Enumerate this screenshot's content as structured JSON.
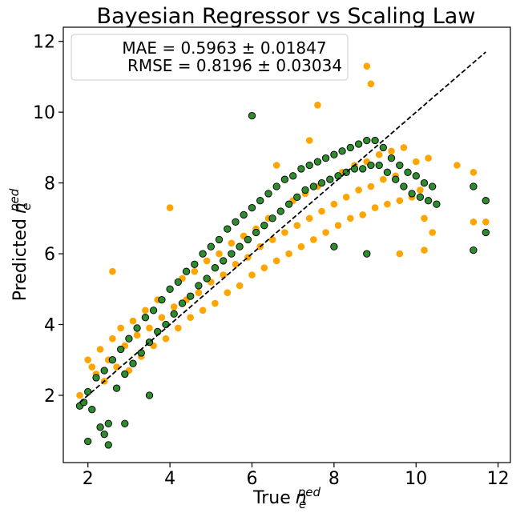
{
  "chart_data": {
    "type": "scatter",
    "title": "Bayesian Regressor vs Scaling Law",
    "xlabel_main": "True",
    "ylabel_main": "Predicted",
    "label_symbol": "n",
    "label_sub": "e",
    "label_sup": "ped",
    "xlim": [
      1.4,
      12.3
    ],
    "ylim": [
      0.1,
      12.4
    ],
    "xticks": [
      2,
      4,
      6,
      8,
      10,
      12
    ],
    "yticks": [
      2,
      4,
      6,
      8,
      10,
      12
    ],
    "grid": false,
    "annotation": {
      "line1": "MAE = 0.5963 ± 0.01847",
      "line2": "RMSE = 0.8196 ± 0.03034",
      "placement": "top-left"
    },
    "reference_line": {
      "style": "dashed",
      "color": "#000000",
      "x": [
        1.8,
        11.7
      ],
      "y": [
        1.8,
        11.7
      ]
    },
    "series": [
      {
        "color": "#ffa500",
        "edgecolor": "#ffa500",
        "points": [
          [
            1.8,
            2.0
          ],
          [
            2.0,
            3.0
          ],
          [
            2.1,
            2.8
          ],
          [
            2.2,
            2.6
          ],
          [
            2.3,
            3.3
          ],
          [
            2.4,
            2.4
          ],
          [
            2.5,
            3.0
          ],
          [
            2.6,
            3.6
          ],
          [
            2.7,
            2.8
          ],
          [
            2.8,
            3.9
          ],
          [
            2.9,
            3.4
          ],
          [
            3.0,
            2.7
          ],
          [
            3.1,
            4.1
          ],
          [
            3.2,
            3.7
          ],
          [
            3.3,
            3.1
          ],
          [
            3.4,
            4.4
          ],
          [
            3.5,
            3.9
          ],
          [
            3.6,
            3.4
          ],
          [
            3.7,
            4.7
          ],
          [
            3.8,
            4.2
          ],
          [
            3.9,
            3.6
          ],
          [
            4.0,
            5.0
          ],
          [
            4.1,
            4.5
          ],
          [
            4.2,
            3.9
          ],
          [
            4.3,
            5.3
          ],
          [
            4.4,
            4.7
          ],
          [
            4.5,
            4.2
          ],
          [
            4.6,
            5.5
          ],
          [
            4.7,
            4.9
          ],
          [
            4.8,
            4.4
          ],
          [
            4.9,
            5.8
          ],
          [
            5.0,
            5.2
          ],
          [
            5.1,
            4.6
          ],
          [
            5.2,
            6.0
          ],
          [
            5.3,
            5.4
          ],
          [
            5.4,
            4.9
          ],
          [
            5.5,
            6.3
          ],
          [
            5.6,
            5.7
          ],
          [
            5.7,
            5.1
          ],
          [
            5.8,
            6.5
          ],
          [
            5.9,
            5.9
          ],
          [
            6.0,
            5.4
          ],
          [
            6.1,
            6.7
          ],
          [
            6.2,
            6.2
          ],
          [
            6.3,
            5.6
          ],
          [
            6.4,
            7.0
          ],
          [
            6.5,
            6.4
          ],
          [
            6.6,
            5.8
          ],
          [
            6.7,
            7.2
          ],
          [
            6.8,
            6.6
          ],
          [
            6.9,
            6.0
          ],
          [
            7.0,
            7.5
          ],
          [
            7.1,
            6.8
          ],
          [
            7.2,
            6.2
          ],
          [
            7.3,
            7.7
          ],
          [
            7.4,
            7.0
          ],
          [
            7.5,
            6.4
          ],
          [
            7.6,
            7.9
          ],
          [
            7.7,
            7.2
          ],
          [
            7.8,
            6.6
          ],
          [
            7.9,
            8.1
          ],
          [
            8.0,
            7.4
          ],
          [
            8.1,
            6.8
          ],
          [
            8.2,
            8.3
          ],
          [
            8.3,
            7.6
          ],
          [
            8.4,
            7.0
          ],
          [
            8.5,
            8.5
          ],
          [
            8.6,
            7.8
          ],
          [
            8.7,
            7.1
          ],
          [
            8.8,
            8.6
          ],
          [
            8.9,
            7.9
          ],
          [
            9.0,
            7.3
          ],
          [
            9.1,
            8.8
          ],
          [
            9.2,
            8.1
          ],
          [
            9.3,
            7.4
          ],
          [
            9.4,
            8.9
          ],
          [
            9.5,
            8.2
          ],
          [
            9.6,
            7.5
          ],
          [
            9.7,
            9.0
          ],
          [
            9.8,
            8.3
          ],
          [
            9.9,
            7.6
          ],
          [
            10.0,
            8.6
          ],
          [
            10.1,
            7.8
          ],
          [
            10.2,
            7.0
          ],
          [
            10.3,
            8.7
          ],
          [
            10.4,
            6.6
          ],
          [
            10.5,
            7.4
          ],
          [
            11.0,
            8.5
          ],
          [
            11.4,
            8.3
          ],
          [
            11.4,
            6.9
          ],
          [
            11.7,
            6.9
          ],
          [
            8.9,
            10.8
          ],
          [
            8.8,
            11.3
          ],
          [
            7.6,
            10.2
          ],
          [
            6.6,
            8.5
          ],
          [
            4.0,
            7.3
          ],
          [
            2.6,
            5.5
          ],
          [
            9.6,
            6.0
          ],
          [
            10.2,
            6.1
          ],
          [
            7.4,
            9.2
          ]
        ]
      },
      {
        "color": "#2e8b2e",
        "edgecolor": "#000000",
        "points": [
          [
            1.8,
            1.7
          ],
          [
            1.9,
            1.8
          ],
          [
            2.0,
            2.1
          ],
          [
            2.1,
            1.6
          ],
          [
            2.2,
            2.5
          ],
          [
            2.3,
            1.1
          ],
          [
            2.4,
            0.9
          ],
          [
            2.4,
            2.7
          ],
          [
            2.5,
            1.2
          ],
          [
            2.6,
            3.0
          ],
          [
            2.7,
            2.2
          ],
          [
            2.8,
            3.3
          ],
          [
            2.9,
            2.6
          ],
          [
            3.0,
            3.6
          ],
          [
            3.1,
            2.9
          ],
          [
            3.2,
            3.9
          ],
          [
            3.3,
            3.2
          ],
          [
            3.4,
            4.2
          ],
          [
            3.5,
            3.5
          ],
          [
            3.6,
            4.4
          ],
          [
            3.7,
            3.8
          ],
          [
            3.8,
            4.7
          ],
          [
            3.9,
            4.0
          ],
          [
            4.0,
            5.0
          ],
          [
            4.1,
            4.3
          ],
          [
            4.2,
            5.2
          ],
          [
            4.3,
            4.6
          ],
          [
            4.4,
            5.5
          ],
          [
            4.5,
            4.8
          ],
          [
            4.6,
            5.7
          ],
          [
            4.7,
            5.1
          ],
          [
            4.8,
            6.0
          ],
          [
            4.9,
            5.3
          ],
          [
            5.0,
            6.2
          ],
          [
            5.1,
            5.6
          ],
          [
            5.2,
            6.4
          ],
          [
            5.3,
            5.8
          ],
          [
            5.4,
            6.7
          ],
          [
            5.5,
            6.0
          ],
          [
            5.6,
            6.9
          ],
          [
            5.7,
            6.2
          ],
          [
            5.8,
            7.1
          ],
          [
            5.9,
            6.4
          ],
          [
            6.0,
            7.3
          ],
          [
            6.1,
            6.6
          ],
          [
            6.2,
            7.5
          ],
          [
            6.3,
            6.8
          ],
          [
            6.4,
            7.7
          ],
          [
            6.5,
            7.0
          ],
          [
            6.6,
            7.9
          ],
          [
            6.7,
            7.2
          ],
          [
            6.8,
            8.1
          ],
          [
            6.9,
            7.4
          ],
          [
            7.0,
            8.2
          ],
          [
            7.1,
            7.6
          ],
          [
            7.2,
            8.4
          ],
          [
            7.3,
            7.8
          ],
          [
            7.4,
            8.5
          ],
          [
            7.5,
            7.9
          ],
          [
            7.6,
            8.6
          ],
          [
            7.7,
            8.0
          ],
          [
            7.8,
            8.7
          ],
          [
            7.9,
            8.1
          ],
          [
            8.0,
            8.8
          ],
          [
            8.1,
            8.2
          ],
          [
            8.2,
            8.9
          ],
          [
            8.3,
            8.3
          ],
          [
            8.4,
            9.0
          ],
          [
            8.5,
            8.4
          ],
          [
            8.6,
            9.1
          ],
          [
            8.7,
            8.4
          ],
          [
            8.8,
            9.2
          ],
          [
            8.9,
            8.5
          ],
          [
            9.0,
            9.2
          ],
          [
            9.1,
            8.5
          ],
          [
            9.2,
            9.0
          ],
          [
            9.3,
            8.3
          ],
          [
            9.4,
            8.7
          ],
          [
            9.5,
            8.1
          ],
          [
            9.6,
            8.5
          ],
          [
            9.7,
            7.9
          ],
          [
            9.8,
            8.3
          ],
          [
            9.9,
            7.7
          ],
          [
            10.0,
            8.2
          ],
          [
            10.1,
            7.6
          ],
          [
            10.2,
            8.0
          ],
          [
            10.3,
            7.5
          ],
          [
            10.4,
            7.9
          ],
          [
            10.5,
            7.4
          ],
          [
            11.4,
            7.9
          ],
          [
            11.7,
            7.5
          ],
          [
            11.7,
            6.6
          ],
          [
            11.4,
            6.1
          ],
          [
            6.0,
            9.9
          ],
          [
            3.5,
            2.0
          ],
          [
            2.9,
            1.2
          ],
          [
            2.5,
            0.6
          ],
          [
            2.0,
            0.7
          ],
          [
            8.8,
            6.0
          ],
          [
            8.0,
            6.2
          ]
        ]
      }
    ]
  }
}
